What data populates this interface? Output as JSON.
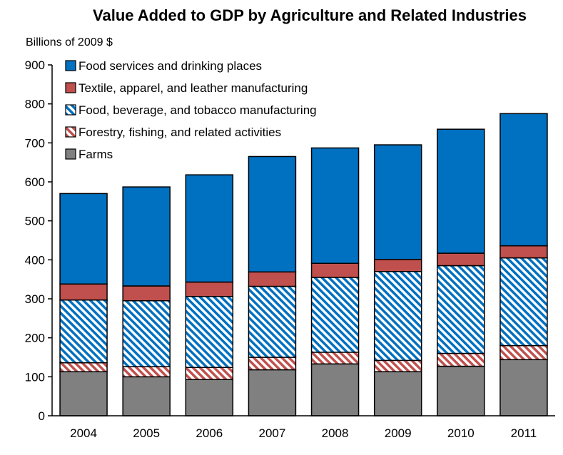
{
  "chart_data": {
    "type": "bar",
    "stacked": true,
    "title": "Value Added to GDP by Agriculture and Related Industries",
    "ylabel": "Billions of  2009 $",
    "xlabel": "",
    "categories": [
      "2004",
      "2005",
      "2006",
      "2007",
      "2008",
      "2009",
      "2010",
      "2011"
    ],
    "ylim": [
      0,
      900
    ],
    "yticks": [
      0,
      100,
      200,
      300,
      400,
      500,
      600,
      700,
      800,
      900
    ],
    "grid": false,
    "legend_position": "top-left",
    "series": [
      {
        "name": "Farms",
        "color": "#808080",
        "pattern": "solid",
        "values": [
          113,
          100,
          93,
          118,
          133,
          113,
          127,
          144
        ]
      },
      {
        "name": "Forestry, fishing, and related activities",
        "color": "#C0504D",
        "pattern": "diagonal-hatch",
        "values": [
          23,
          26,
          31,
          32,
          30,
          29,
          33,
          36
        ]
      },
      {
        "name": "Food, beverage, and tobacco manufacturing",
        "color": "#0070C0",
        "pattern": "diagonal-hatch",
        "values": [
          161,
          169,
          182,
          182,
          192,
          228,
          225,
          225
        ]
      },
      {
        "name": "Textile, apparel, and leather manufacturing",
        "color": "#C0504D",
        "pattern": "solid",
        "values": [
          41,
          38,
          37,
          37,
          36,
          31,
          32,
          31
        ]
      },
      {
        "name": "Food services and drinking places",
        "color": "#0070C0",
        "pattern": "solid",
        "values": [
          232,
          254,
          275,
          296,
          296,
          294,
          318,
          339
        ]
      }
    ],
    "legend_order": [
      4,
      3,
      2,
      1,
      0
    ]
  }
}
